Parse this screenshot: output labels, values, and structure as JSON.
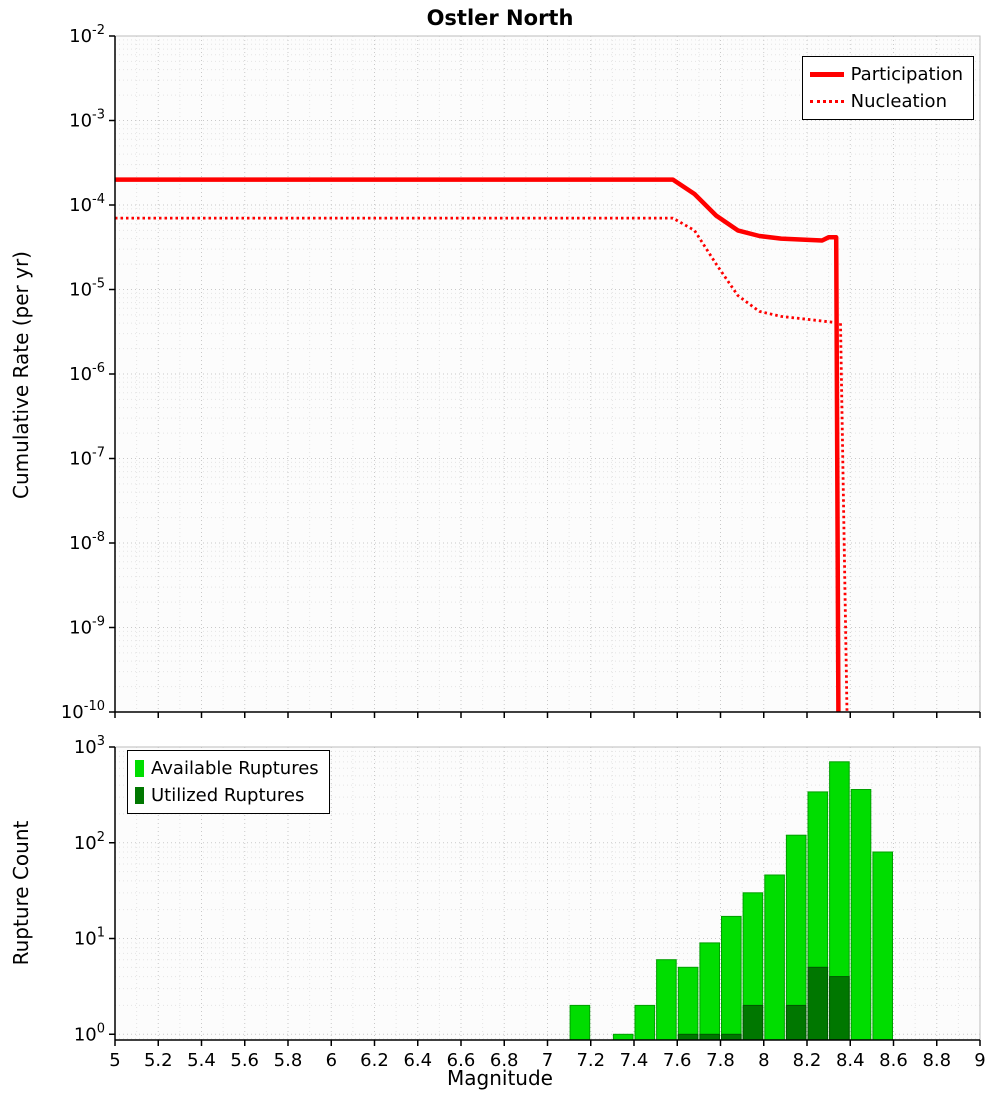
{
  "chart_data": [
    {
      "type": "line",
      "title": "Ostler North",
      "xlabel": "",
      "ylabel": "Cumulative Rate (per yr)",
      "xlim": [
        5,
        9
      ],
      "ylim_log10": [
        -10,
        -2
      ],
      "x_ticks": [
        5,
        5.2,
        5.4,
        5.6,
        5.8,
        6,
        6.2,
        6.4,
        6.6,
        6.8,
        7,
        7.2,
        7.4,
        7.6,
        7.8,
        8,
        8.2,
        8.4,
        8.6,
        8.8,
        9
      ],
      "y_tick_exponents": [
        -2,
        -3,
        -4,
        -5,
        -6,
        -7,
        -8,
        -9,
        -10
      ],
      "grid": true,
      "legend_position": "top-right",
      "series": [
        {
          "name": "Participation",
          "color": "#ff0000",
          "style": "solid",
          "width": 4.5,
          "points": [
            [
              5,
              0.0002
            ],
            [
              7.58,
              0.0002
            ],
            [
              7.68,
              0.000135
            ],
            [
              7.78,
              7.5e-05
            ],
            [
              7.88,
              5e-05
            ],
            [
              7.98,
              4.3e-05
            ],
            [
              8.08,
              4e-05
            ],
            [
              8.18,
              3.9e-05
            ],
            [
              8.27,
              3.8e-05
            ],
            [
              8.3,
              4.15e-05
            ],
            [
              8.335,
              4.15e-05
            ],
            [
              8.345,
              1e-10
            ]
          ]
        },
        {
          "name": "Nucleation",
          "color": "#ff0000",
          "style": "dotted",
          "width": 2.8,
          "points": [
            [
              5,
              7e-05
            ],
            [
              7.58,
              7e-05
            ],
            [
              7.68,
              5e-05
            ],
            [
              7.78,
              2e-05
            ],
            [
              7.88,
              8.5e-06
            ],
            [
              7.98,
              5.5e-06
            ],
            [
              8.08,
              4.8e-06
            ],
            [
              8.18,
              4.5e-06
            ],
            [
              8.28,
              4.2e-06
            ],
            [
              8.355,
              4e-06
            ],
            [
              8.385,
              1e-10
            ]
          ]
        }
      ]
    },
    {
      "type": "bar",
      "title": "",
      "xlabel": "Magnitude",
      "ylabel": "Rupture Count",
      "xlim": [
        5,
        9
      ],
      "ylim_log10": [
        -0.06,
        3
      ],
      "x_ticks": [
        5,
        5.2,
        5.4,
        5.6,
        5.8,
        6,
        6.2,
        6.4,
        6.6,
        6.8,
        7,
        7.2,
        7.4,
        7.6,
        7.8,
        8,
        8.2,
        8.4,
        8.6,
        8.8,
        9
      ],
      "y_tick_exponents": [
        0,
        1,
        2,
        3
      ],
      "grid": true,
      "bin_width": 0.1,
      "legend_position": "top-left",
      "series": [
        {
          "name": "Available Ruptures",
          "color": "#00dd00",
          "edge": "#00a000",
          "centers": [
            7.15,
            7.35,
            7.45,
            7.55,
            7.65,
            7.75,
            7.85,
            7.95,
            8.05,
            8.15,
            8.25,
            8.35,
            8.45,
            8.55
          ],
          "values": [
            2,
            1,
            2,
            6,
            5,
            9,
            17,
            30,
            46,
            120,
            340,
            700,
            360,
            80
          ]
        },
        {
          "name": "Utilized Ruptures",
          "color": "#007700",
          "edge": "#005500",
          "centers": [
            7.65,
            7.75,
            7.85,
            7.95,
            8.15,
            8.25,
            8.35
          ],
          "values": [
            1,
            1,
            1,
            2,
            2,
            5,
            4
          ]
        }
      ]
    }
  ]
}
